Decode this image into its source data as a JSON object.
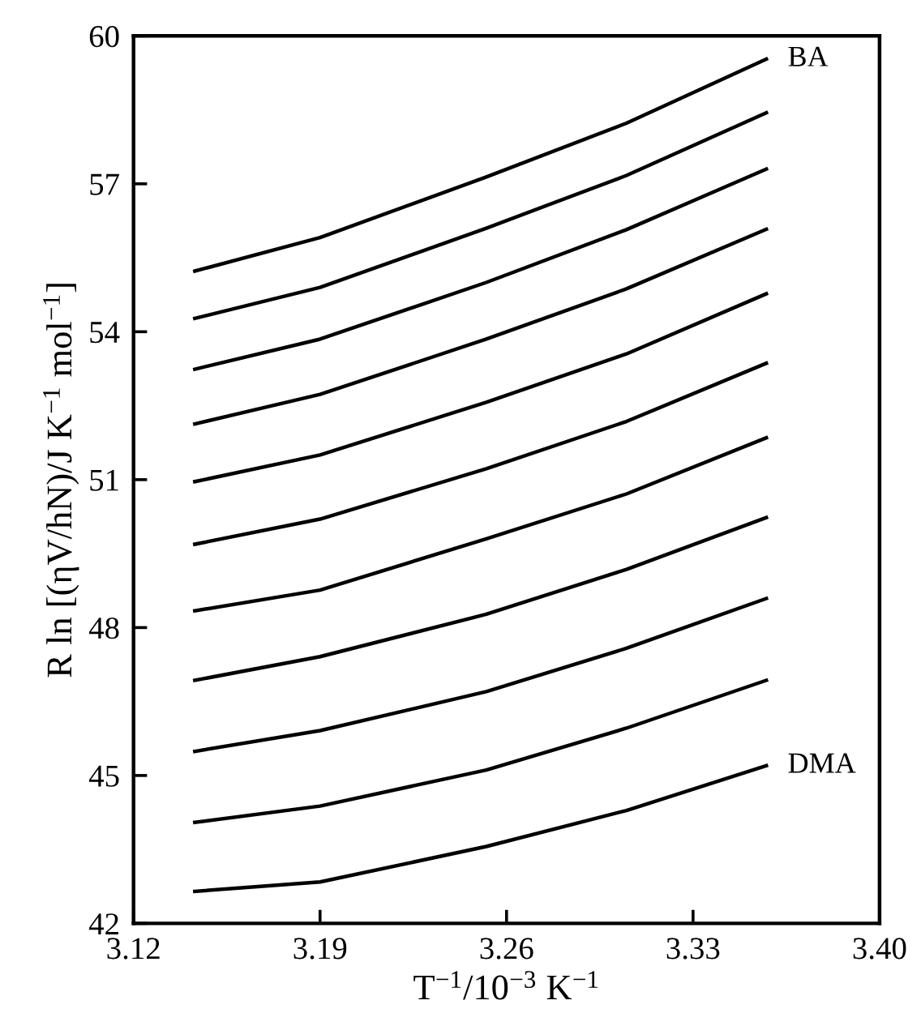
{
  "chart_data": {
    "type": "line",
    "xlabel": "T$^{−1}$/10$^{−3}$ K$^{−1}$",
    "ylabel": "R ln [(ηV/hN)/J K$^{−1}$ mol$^{−1}$]",
    "x": [
      3.143,
      3.19,
      3.2524,
      3.305,
      3.3575
    ],
    "xlim": [
      3.12,
      3.4
    ],
    "xticks": [
      {
        "value": 3.12,
        "label": "3.12"
      },
      {
        "value": 3.19,
        "label": "3.19"
      },
      {
        "value": 3.26,
        "label": "3.26"
      },
      {
        "value": 3.33,
        "label": "3.33"
      },
      {
        "value": 3.4,
        "label": "3.40"
      }
    ],
    "ylim": [
      42,
      60
    ],
    "yticks": [
      42,
      45,
      48,
      51,
      54,
      57,
      60
    ],
    "grid": false,
    "legend": false,
    "marker": "none",
    "line_style": "solid",
    "series": [
      {
        "name": "BA",
        "color": "#000000",
        "values": [
          55.23,
          55.91,
          57.14,
          58.23,
          59.53
        ]
      },
      {
        "color": "#000000",
        "values": [
          54.27,
          54.9,
          56.1,
          57.17,
          58.44
        ]
      },
      {
        "color": "#000000",
        "values": [
          53.24,
          53.85,
          55.0,
          56.07,
          57.3
        ]
      },
      {
        "color": "#000000",
        "values": [
          52.13,
          52.73,
          53.85,
          54.87,
          56.08
        ]
      },
      {
        "color": "#000000",
        "values": [
          50.96,
          51.5,
          52.57,
          53.55,
          54.77
        ]
      },
      {
        "color": "#000000",
        "values": [
          49.69,
          50.2,
          51.22,
          52.18,
          53.36
        ]
      },
      {
        "color": "#000000",
        "values": [
          48.34,
          48.76,
          49.8,
          50.71,
          51.85
        ]
      },
      {
        "color": "#000000",
        "values": [
          46.93,
          47.41,
          48.27,
          49.18,
          50.23
        ]
      },
      {
        "color": "#000000",
        "values": [
          45.49,
          45.91,
          46.7,
          47.58,
          48.59
        ]
      },
      {
        "color": "#000000",
        "values": [
          44.05,
          44.38,
          45.11,
          45.96,
          46.93
        ]
      },
      {
        "name": "DMA",
        "color": "#000000",
        "values": [
          42.65,
          42.84,
          43.56,
          44.29,
          45.2
        ]
      }
    ]
  }
}
